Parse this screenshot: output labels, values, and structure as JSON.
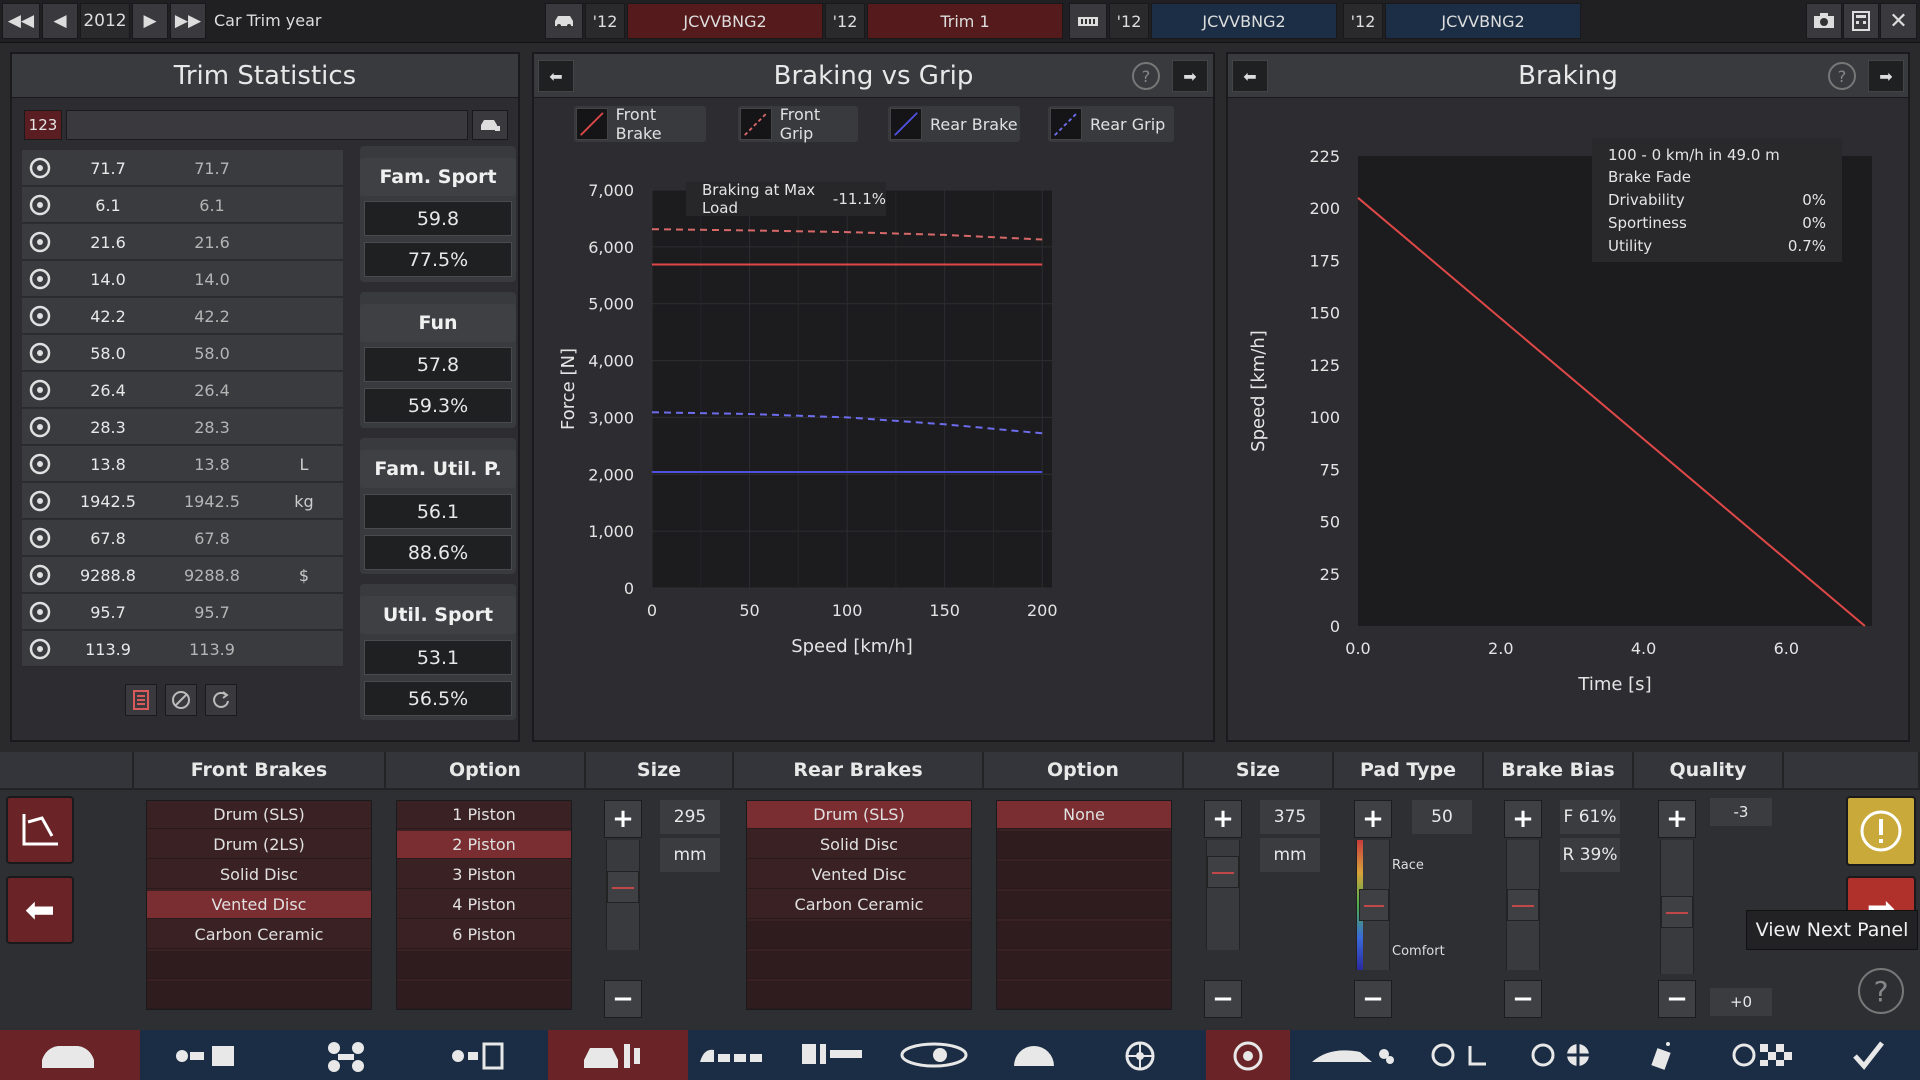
{
  "topbar": {
    "year": "2012",
    "year_label": "Car Trim year",
    "items": [
      {
        "prefix": "'12",
        "label": "JCVVBNG2"
      },
      {
        "prefix": "'12",
        "label": "Trim 1"
      },
      {
        "prefix": "'12",
        "label": "JCVVBNG2"
      },
      {
        "prefix": "'12",
        "label": "JCVVBNG2"
      }
    ]
  },
  "trim_stats": {
    "title": "Trim Statistics",
    "filter_badge": "123",
    "filter_value": "",
    "rows": [
      {
        "icon": "steering-wheel-icon",
        "v1": "71.7",
        "v2": "71.7",
        "unit": ""
      },
      {
        "icon": "racing-flag-icon",
        "v1": "6.1",
        "v2": "6.1",
        "unit": ""
      },
      {
        "icon": "car-seat-icon",
        "v1": "21.6",
        "v2": "21.6",
        "unit": ""
      },
      {
        "icon": "diamond-icon",
        "v1": "14.0",
        "v2": "14.0",
        "unit": ""
      },
      {
        "icon": "safety-icon",
        "v1": "42.2",
        "v2": "42.2",
        "unit": ""
      },
      {
        "icon": "passengers-icon",
        "v1": "58.0",
        "v2": "58.0",
        "unit": ""
      },
      {
        "icon": "cargo-car-icon",
        "v1": "26.4",
        "v2": "26.4",
        "unit": ""
      },
      {
        "icon": "offroad-car-icon",
        "v1": "28.3",
        "v2": "28.3",
        "unit": ""
      },
      {
        "icon": "fuel-can-icon",
        "v1": "13.8",
        "v2": "13.8",
        "unit": "L"
      },
      {
        "icon": "weight-icon",
        "v1": "1942.5",
        "v2": "1942.5",
        "unit": "kg"
      },
      {
        "icon": "engineering-icon",
        "v1": "67.8",
        "v2": "67.8",
        "unit": ""
      },
      {
        "icon": "money-bag-icon",
        "v1": "9288.8",
        "v2": "9288.8",
        "unit": "$"
      },
      {
        "icon": "service-icon",
        "v1": "95.7",
        "v2": "95.7",
        "unit": ""
      },
      {
        "icon": "wrench-gear-icon",
        "v1": "113.9",
        "v2": "113.9",
        "unit": ""
      }
    ],
    "scores": [
      {
        "name": "Fam. Sport",
        "value": "59.8",
        "pct": "77.5%"
      },
      {
        "name": "Fun",
        "value": "57.8",
        "pct": "59.3%"
      },
      {
        "name": "Fam. Util. P.",
        "value": "56.1",
        "pct": "88.6%"
      },
      {
        "name": "Util. Sport",
        "value": "53.1",
        "pct": "56.5%"
      }
    ]
  },
  "braking_grip": {
    "title": "Braking vs Grip",
    "legend": [
      "Front Brake",
      "Front Grip",
      "Rear Brake",
      "Rear Grip"
    ],
    "annotation_label": "Braking at Max Load",
    "annotation_value": "-11.1%"
  },
  "braking": {
    "title": "Braking",
    "info": [
      {
        "label": "100 - 0 km/h in 49.0 m",
        "value": ""
      },
      {
        "label": "Brake Fade",
        "value": ""
      },
      {
        "label": "Drivability",
        "value": "0%"
      },
      {
        "label": "Sportiness",
        "value": "0%"
      },
      {
        "label": "Utility",
        "value": "0.7%"
      }
    ]
  },
  "chart_data": [
    {
      "type": "line",
      "title": "Braking vs Grip",
      "xlabel": "Speed [km/h]",
      "ylabel": "Force [N]",
      "xlim": [
        0,
        205
      ],
      "ylim": [
        0,
        7000
      ],
      "xticks": [
        "0",
        "50",
        "100",
        "150",
        "200"
      ],
      "yticks": [
        "0",
        "1,000",
        "2,000",
        "3,000",
        "4,000",
        "5,000",
        "6,000",
        "7,000"
      ],
      "grid": true,
      "legend_position": "top",
      "series": [
        {
          "name": "Front Brake",
          "color": "#e04848",
          "dash": false,
          "x": [
            0,
            50,
            100,
            150,
            200
          ],
          "y": [
            5690,
            5690,
            5690,
            5690,
            5690
          ]
        },
        {
          "name": "Front Grip",
          "color": "#d86868",
          "dash": true,
          "x": [
            0,
            50,
            100,
            150,
            200
          ],
          "y": [
            6310,
            6290,
            6260,
            6210,
            6130
          ]
        },
        {
          "name": "Rear Brake",
          "color": "#4f4fe0",
          "dash": false,
          "x": [
            0,
            50,
            100,
            150,
            200
          ],
          "y": [
            2040,
            2040,
            2040,
            2040,
            2040
          ]
        },
        {
          "name": "Rear Grip",
          "color": "#6c6cec",
          "dash": true,
          "x": [
            0,
            50,
            100,
            150,
            200
          ],
          "y": [
            3090,
            3060,
            3000,
            2880,
            2720
          ]
        }
      ]
    },
    {
      "type": "line",
      "title": "Braking",
      "xlabel": "Time [s]",
      "ylabel": "Speed [km/h]",
      "xlim": [
        0,
        7.2
      ],
      "ylim": [
        0,
        225
      ],
      "xticks": [
        "0.0",
        "2.0",
        "4.0",
        "6.0"
      ],
      "yticks": [
        "0",
        "25",
        "50",
        "75",
        "100",
        "125",
        "150",
        "175",
        "200",
        "225"
      ],
      "grid": false,
      "series": [
        {
          "name": "",
          "color": "#e04848",
          "dash": false,
          "x": [
            0,
            7.1
          ],
          "y": [
            205,
            0
          ]
        }
      ]
    }
  ],
  "brakes_panel": {
    "headers": [
      "Front Brakes",
      "Option",
      "Size",
      "Rear Brakes",
      "Option",
      "Size",
      "Pad Type",
      "Brake Bias",
      "Quality"
    ],
    "front_types": [
      "Drum (SLS)",
      "Drum (2LS)",
      "Solid Disc",
      "Vented Disc",
      "Carbon Ceramic"
    ],
    "front_selected": 3,
    "front_options": [
      "1 Piston",
      "2 Piston",
      "3 Piston",
      "4 Piston",
      "6 Piston"
    ],
    "front_option_selected": 1,
    "front_size": "295",
    "front_unit": "mm",
    "front_size_level": 0.6,
    "rear_types": [
      "Drum (SLS)",
      "Solid Disc",
      "Vented Disc",
      "Carbon Ceramic"
    ],
    "rear_selected": 0,
    "rear_options": [
      "None"
    ],
    "rear_option_selected": 0,
    "rear_size": "375",
    "rear_unit": "mm",
    "rear_size_level": 0.8,
    "pad_value": "50",
    "pad_race": "Race",
    "pad_comfort": "Comfort",
    "pad_level": 0.5,
    "bias_front": "F 61%",
    "bias_rear": "R 39%",
    "bias_level": 0.5,
    "quality_value": "-3",
    "quality_delta": "+0",
    "quality_level": 0.45,
    "tooltip": "View Next Panel"
  },
  "colors": {
    "accent_red": "#7a2e32",
    "nav_blue": "#1b2d44",
    "nav_red": "#6a2428",
    "warning_yellow": "#c9a93a"
  }
}
